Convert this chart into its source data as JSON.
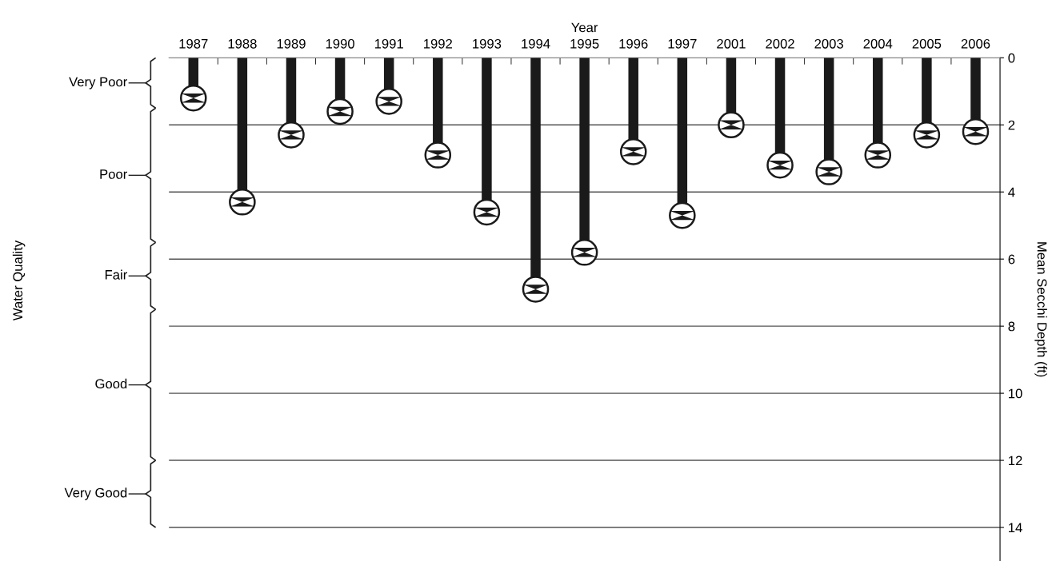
{
  "chart_data": {
    "type": "lollipop",
    "xlabel": "Year",
    "ylabel": "Mean Secchi Depth (ft)",
    "annotations": [
      "Water Quality",
      "Very Poor",
      "Poor",
      "Fair",
      "Good",
      "Very Good"
    ],
    "categories": [
      "1987",
      "1988",
      "1989",
      "1990",
      "1991",
      "1992",
      "1993",
      "1994",
      "1995",
      "1996",
      "1997",
      "2001",
      "2002",
      "2003",
      "2004",
      "2005",
      "2006"
    ],
    "values": [
      1.2,
      4.3,
      2.3,
      1.6,
      1.3,
      2.9,
      4.6,
      6.9,
      5.8,
      2.8,
      4.7,
      2.0,
      3.2,
      3.4,
      2.9,
      2.3,
      2.2
    ],
    "color": "#1a1a1a",
    "marker": "circle",
    "ylim": [
      15,
      0
    ],
    "yticks": [
      0,
      2,
      4,
      6,
      8,
      10,
      12,
      14
    ],
    "grid": "y"
  }
}
